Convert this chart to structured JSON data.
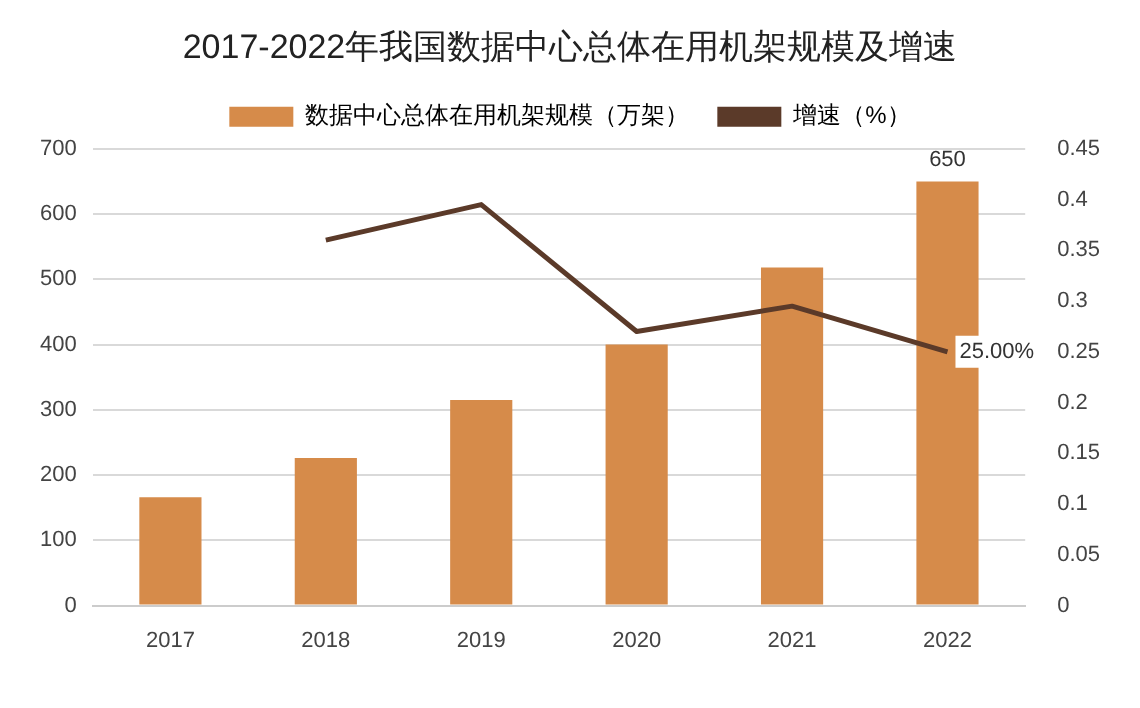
{
  "chart_data": {
    "type": "bar",
    "title": "2017-2022年我国数据中心总体在用机架规模及增速",
    "categories": [
      "2017",
      "2018",
      "2019",
      "2020",
      "2021",
      "2022"
    ],
    "series": [
      {
        "name": "数据中心总体在用机架规模（万架）",
        "color": "#d68b4a",
        "values": [
          166,
          226,
          315,
          400,
          518,
          650
        ],
        "value_labels": [
          null,
          null,
          null,
          null,
          null,
          "650"
        ]
      },
      {
        "name": "增速（%）",
        "type": "line",
        "axis": "y2",
        "color": "#5b3a29",
        "values": [
          null,
          0.36,
          0.395,
          0.27,
          0.295,
          0.25
        ],
        "value_labels": [
          null,
          null,
          null,
          null,
          null,
          "25.00%"
        ]
      }
    ],
    "ylim": [
      0,
      700
    ],
    "yticks": [
      0,
      100,
      200,
      300,
      400,
      500,
      600,
      700
    ],
    "y2lim": [
      0,
      0.45
    ],
    "y2ticks": [
      0,
      0.05,
      0.1,
      0.15,
      0.2,
      0.25,
      0.3,
      0.35,
      0.4,
      0.45
    ],
    "grid": "y",
    "legend": "top",
    "marker": "none"
  }
}
